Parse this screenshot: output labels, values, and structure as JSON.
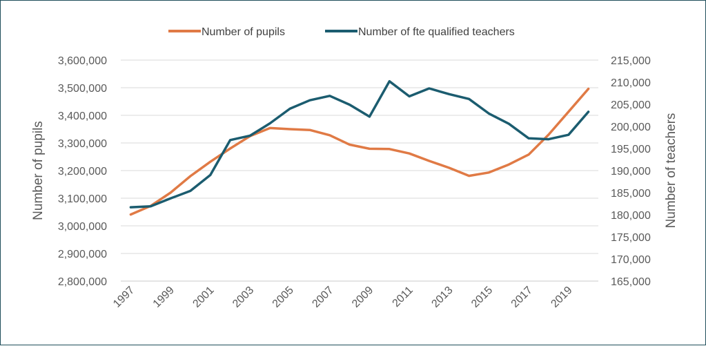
{
  "chart_data": {
    "type": "line",
    "title": "",
    "x": [
      1997,
      1998,
      1999,
      2000,
      2001,
      2002,
      2003,
      2004,
      2005,
      2006,
      2007,
      2008,
      2009,
      2010,
      2011,
      2012,
      2013,
      2014,
      2015,
      2016,
      2017,
      2018,
      2019,
      2020
    ],
    "x_tick_labels": [
      "1997",
      "1999",
      "2001",
      "2003",
      "2005",
      "2007",
      "2009",
      "2011",
      "2013",
      "2015",
      "2017",
      "2019"
    ],
    "ylabel_left": "Number of pupils",
    "ylabel_right": "Number of teachers",
    "ylim_left": [
      2800000,
      3600000
    ],
    "ylim_right": [
      165000,
      215000
    ],
    "y_left_tick_labels": [
      "2,800,000",
      "2,900,000",
      "3,000,000",
      "3,100,000",
      "3,200,000",
      "3,300,000",
      "3,400,000",
      "3,500,000",
      "3,600,000"
    ],
    "y_right_tick_labels": [
      "165,000",
      "170,000",
      "175,000",
      "180,000",
      "185,000",
      "190,000",
      "195,000",
      "200,000",
      "205,000",
      "210,000",
      "215,000"
    ],
    "grid": true,
    "legend_position": "top",
    "series": [
      {
        "name": "Number of pupils",
        "axis": "left",
        "color": "#e07a45",
        "values": [
          3041000,
          3072000,
          3120000,
          3180000,
          3232000,
          3280000,
          3325000,
          3354000,
          3350000,
          3347000,
          3328000,
          3294000,
          3279000,
          3278000,
          3262000,
          3235000,
          3210000,
          3181000,
          3193000,
          3222000,
          3258000,
          3330000,
          3413000,
          3496000
        ]
      },
      {
        "name": "Number of fte qualified teachers",
        "axis": "right",
        "color": "#1b5c6f",
        "values": [
          181700,
          181900,
          183700,
          185400,
          189000,
          196900,
          197900,
          200700,
          204000,
          205900,
          206900,
          204900,
          202200,
          210200,
          206800,
          208600,
          207300,
          206200,
          202900,
          200600,
          197300,
          197100,
          198100,
          203300
        ]
      }
    ]
  }
}
